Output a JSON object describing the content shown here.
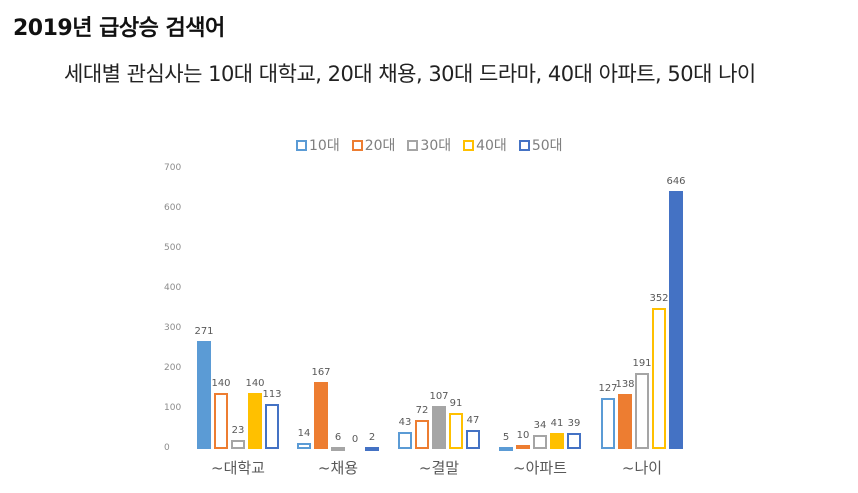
{
  "page": {
    "title": "2019년 급상승 검색어",
    "subtitle": "세대별 관심사는 10대 대학교, 20대 채용, 30대 드라마, 40대 아파트, 50대 나이"
  },
  "chart_data": {
    "type": "bar",
    "title": "",
    "xlabel": "",
    "ylabel": "",
    "ylim": [
      0,
      700
    ],
    "yticks": [
      0,
      100,
      200,
      300,
      400,
      500,
      600,
      700
    ],
    "grid": false,
    "legend_position": "top",
    "categories": [
      "~대학교",
      "~채용",
      "~결말",
      "~아파트",
      "~나이"
    ],
    "series": [
      {
        "name": "10대",
        "color": "#5b9bd5",
        "values": [
          271,
          14,
          43,
          5,
          127
        ]
      },
      {
        "name": "20대",
        "color": "#ed7d31",
        "values": [
          140,
          167,
          72,
          10,
          138
        ]
      },
      {
        "name": "30대",
        "color": "#a5a5a5",
        "values": [
          23,
          6,
          107,
          34,
          191
        ]
      },
      {
        "name": "40대",
        "color": "#ffc000",
        "values": [
          140,
          0,
          91,
          41,
          352
        ]
      },
      {
        "name": "50대",
        "color": "#4472c4",
        "values": [
          113,
          2,
          47,
          39,
          646
        ]
      }
    ],
    "filled": [
      [
        true,
        false,
        false,
        false,
        false
      ],
      [
        false,
        true,
        false,
        false,
        true
      ],
      [
        false,
        false,
        true,
        false,
        false
      ],
      [
        true,
        true,
        false,
        true,
        false
      ],
      [
        false,
        false,
        false,
        false,
        true
      ]
    ]
  }
}
